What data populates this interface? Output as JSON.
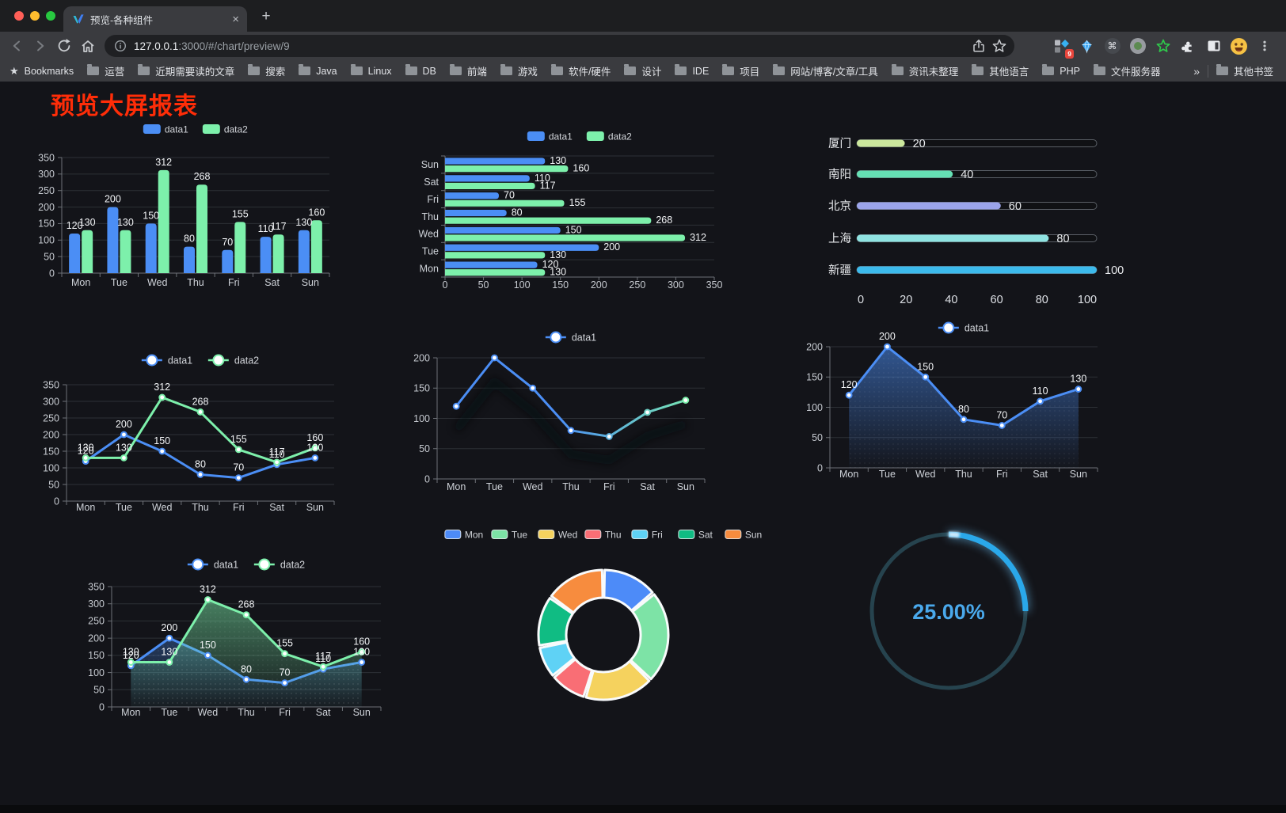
{
  "browser": {
    "tab_title": "预览-各种组件",
    "url_host": "127.0.0.1",
    "url_rest": ":3000/#/chart/preview/9",
    "extension_badge": "9",
    "bookmarks": [
      {
        "label": "Bookmarks",
        "icon": "star"
      },
      {
        "label": "运营",
        "icon": "folder"
      },
      {
        "label": "近期需要读的文章",
        "icon": "folder"
      },
      {
        "label": "搜索",
        "icon": "folder"
      },
      {
        "label": "Java",
        "icon": "folder"
      },
      {
        "label": "Linux",
        "icon": "folder"
      },
      {
        "label": "DB",
        "icon": "folder"
      },
      {
        "label": "前端",
        "icon": "folder"
      },
      {
        "label": "游戏",
        "icon": "folder"
      },
      {
        "label": "软件/硬件",
        "icon": "folder"
      },
      {
        "label": "设计",
        "icon": "folder"
      },
      {
        "label": "IDE",
        "icon": "folder"
      },
      {
        "label": "项目",
        "icon": "folder"
      },
      {
        "label": "网站/博客/文章/工具",
        "icon": "folder"
      },
      {
        "label": "资讯未整理",
        "icon": "folder"
      },
      {
        "label": "其他语言",
        "icon": "folder"
      },
      {
        "label": "PHP",
        "icon": "folder"
      },
      {
        "label": "文件服务器",
        "icon": "folder"
      },
      {
        "label": "»",
        "icon": "chevron",
        "right": true
      },
      {
        "label": "其他书签",
        "icon": "folder",
        "right": true
      }
    ]
  },
  "page": {
    "title": "预览大屏报表",
    "title_color": "#ff2d08"
  },
  "chart_data": [
    {
      "id": "bar-vertical",
      "type": "bar",
      "categories": [
        "Mon",
        "Tue",
        "Wed",
        "Thu",
        "Fri",
        "Sat",
        "Sun"
      ],
      "series": [
        {
          "name": "data1",
          "color": "#4b8ef5",
          "values": [
            120,
            200,
            150,
            80,
            70,
            110,
            130
          ]
        },
        {
          "name": "data2",
          "color": "#7df0ab",
          "values": [
            130,
            130,
            312,
            268,
            155,
            117,
            160
          ]
        }
      ],
      "ylim": [
        0,
        350
      ],
      "ytick_step": 50,
      "show_labels": true,
      "legend_position": "top",
      "grid": true
    },
    {
      "id": "bar-horizontal",
      "type": "bar-horizontal",
      "categories": [
        "Mon",
        "Tue",
        "Wed",
        "Thu",
        "Fri",
        "Sat",
        "Sun"
      ],
      "display_order_top_to_bottom": [
        "Sun",
        "Sat",
        "Fri",
        "Thu",
        "Wed",
        "Tue",
        "Mon"
      ],
      "series": [
        {
          "name": "data1",
          "color": "#4b8ef5",
          "values": [
            120,
            200,
            150,
            80,
            70,
            110,
            130
          ]
        },
        {
          "name": "data2",
          "color": "#7df0ab",
          "values": [
            130,
            130,
            312,
            268,
            155,
            117,
            160
          ]
        }
      ],
      "xlim": [
        0,
        350
      ],
      "xtick_step": 50,
      "show_labels": true,
      "legend_position": "top",
      "grid": true
    },
    {
      "id": "city-progress",
      "type": "progress",
      "max": 100,
      "ticks": [
        0,
        20,
        40,
        60,
        80,
        100
      ],
      "rows": [
        {
          "label": "厦门",
          "value": 20,
          "color": "#cbe79c"
        },
        {
          "label": "南阳",
          "value": 40,
          "color": "#65e0b4"
        },
        {
          "label": "北京",
          "value": 60,
          "color": "#9ba4ea"
        },
        {
          "label": "上海",
          "value": 80,
          "color": "#8fe3e1"
        },
        {
          "label": "新疆",
          "value": 100,
          "color": "#3cbaec"
        }
      ]
    },
    {
      "id": "line-two-series",
      "type": "line",
      "categories": [
        "Mon",
        "Tue",
        "Wed",
        "Thu",
        "Fri",
        "Sat",
        "Sun"
      ],
      "series": [
        {
          "name": "data1",
          "color": "#4b8ef5",
          "values": [
            120,
            200,
            150,
            80,
            70,
            110,
            130
          ]
        },
        {
          "name": "data2",
          "color": "#7df0ab",
          "values": [
            130,
            130,
            312,
            268,
            155,
            117,
            160
          ]
        }
      ],
      "ylim": [
        0,
        350
      ],
      "ytick_step": 50,
      "show_labels": true,
      "legend_position": "top",
      "grid": true
    },
    {
      "id": "line-gradient",
      "type": "line",
      "categories": [
        "Mon",
        "Tue",
        "Wed",
        "Thu",
        "Fri",
        "Sat",
        "Sun"
      ],
      "series": [
        {
          "name": "data1",
          "color": "#4b8ef5",
          "color_end": "#7df0ab",
          "values": [
            120,
            200,
            150,
            80,
            70,
            110,
            130
          ]
        }
      ],
      "ylim": [
        0,
        200
      ],
      "ytick_step": 50,
      "show_labels": false,
      "gradient_stroke": true,
      "shadow": true,
      "legend_position": "top",
      "grid": true
    },
    {
      "id": "area-single",
      "type": "area",
      "categories": [
        "Mon",
        "Tue",
        "Wed",
        "Thu",
        "Fri",
        "Sat",
        "Sun"
      ],
      "series": [
        {
          "name": "data1",
          "color": "#4b8ef5",
          "values": [
            120,
            200,
            150,
            80,
            70,
            110,
            130
          ]
        }
      ],
      "ylim": [
        0,
        200
      ],
      "ytick_step": 50,
      "show_labels": true,
      "legend_position": "top",
      "grid": true
    },
    {
      "id": "area-two-series",
      "type": "area",
      "categories": [
        "Mon",
        "Tue",
        "Wed",
        "Thu",
        "Fri",
        "Sat",
        "Sun"
      ],
      "series": [
        {
          "name": "data1",
          "color": "#4b8ef5",
          "values": [
            120,
            200,
            150,
            80,
            70,
            110,
            130
          ]
        },
        {
          "name": "data2",
          "color": "#7df0ab",
          "values": [
            130,
            130,
            312,
            268,
            155,
            117,
            160
          ]
        }
      ],
      "ylim": [
        0,
        350
      ],
      "ytick_step": 50,
      "show_labels": true,
      "legend_position": "top",
      "grid": true
    },
    {
      "id": "week-donut",
      "type": "pie",
      "categories": [
        "Mon",
        "Tue",
        "Wed",
        "Thu",
        "Fri",
        "Sat",
        "Sun"
      ],
      "values": [
        120,
        200,
        150,
        80,
        70,
        110,
        130
      ],
      "colors": [
        "#4d8bf8",
        "#7de3a6",
        "#f5d25e",
        "#f96e75",
        "#5fd2f5",
        "#10bc83",
        "#f78c3e"
      ],
      "legend_position": "top",
      "donut": true
    },
    {
      "id": "percent-gauge",
      "type": "gauge",
      "label": "25.00%",
      "percent": 25,
      "color": "#2aa8ea",
      "track_color": "#26434e",
      "text_color": "#4aa9ec"
    }
  ]
}
